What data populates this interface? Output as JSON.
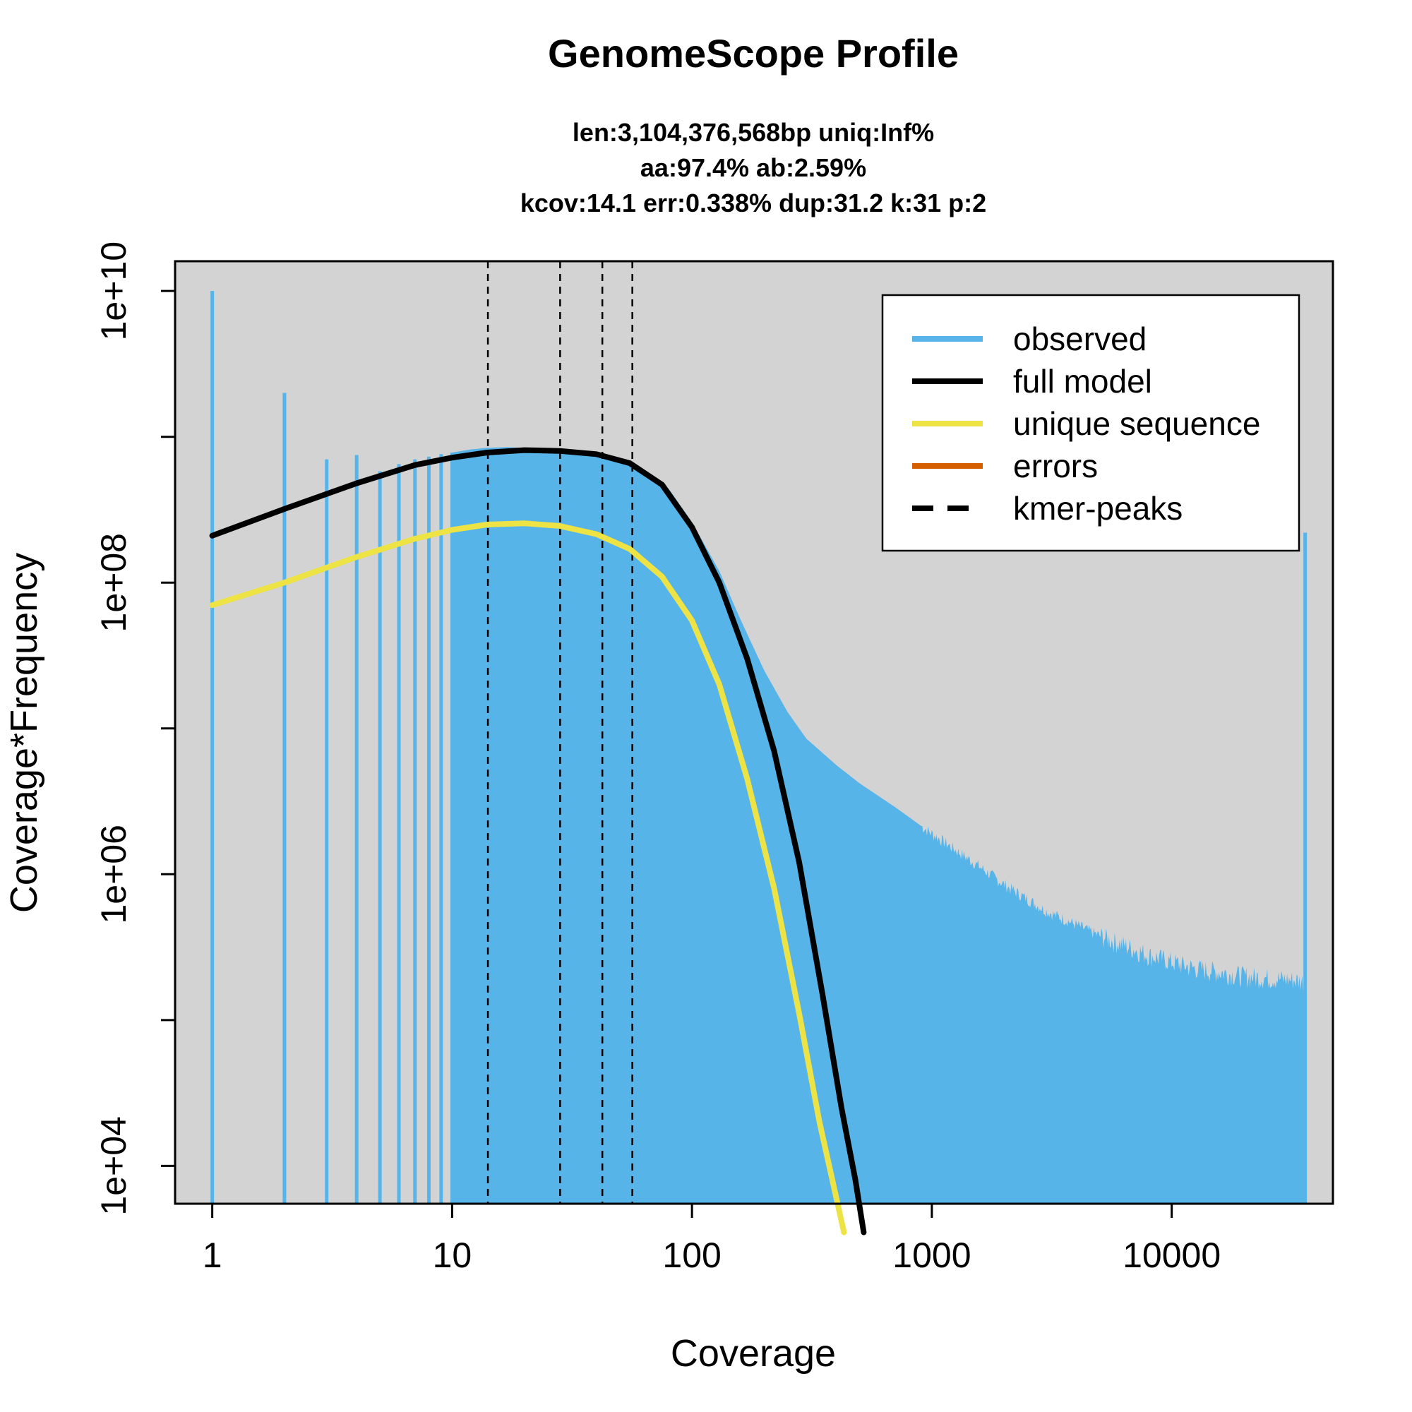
{
  "chart_data": {
    "type": "line",
    "title": "GenomeScope Profile",
    "subtitle_lines": [
      "len:3,104,376,568bp uniq:Inf%",
      "aa:97.4% ab:2.59%",
      "kcov:14.1 err:0.338%  dup:31.2  k:31 p:2"
    ],
    "xlabel": "Coverage",
    "ylabel": "Coverage*Frequency",
    "x_scale": "log",
    "y_scale": "log",
    "xlim": [
      0.7,
      47000
    ],
    "ylim": [
      5500,
      16000000000
    ],
    "x_ticks": [
      1,
      10,
      100,
      1000,
      10000
    ],
    "x_tick_labels": [
      "1",
      "10",
      "100",
      "1000",
      "10000"
    ],
    "y_ticks": [
      10000,
      100000,
      1000000,
      10000000,
      100000000,
      1000000000,
      10000000000
    ],
    "y_tick_labels": [
      "1e+04",
      "",
      "1e+06",
      "",
      "1e+08",
      "",
      "1e+10"
    ],
    "background_color": "#d3d3d3",
    "kmer_peaks": [
      14.1,
      28.2,
      42.3,
      56.4
    ],
    "observed_spikes": [
      {
        "x": 1,
        "y": 10000000000
      },
      {
        "x": 2,
        "y": 2000000000
      },
      {
        "x": 3,
        "y": 700000000
      },
      {
        "x": 4,
        "y": 750000000
      },
      {
        "x": 5,
        "y": 580000000
      },
      {
        "x": 6,
        "y": 650000000
      },
      {
        "x": 7,
        "y": 700000000
      },
      {
        "x": 8,
        "y": 730000000
      },
      {
        "x": 9,
        "y": 760000000
      },
      {
        "x": 10,
        "y": 780000000
      },
      {
        "x": 36000,
        "y": 220000000
      }
    ],
    "observed_envelope": [
      {
        "x": 10,
        "y": 780000000
      },
      {
        "x": 12,
        "y": 820000000
      },
      {
        "x": 14,
        "y": 840000000
      },
      {
        "x": 17,
        "y": 850000000
      },
      {
        "x": 22,
        "y": 830000000
      },
      {
        "x": 30,
        "y": 790000000
      },
      {
        "x": 40,
        "y": 730000000
      },
      {
        "x": 60,
        "y": 620000000
      },
      {
        "x": 80,
        "y": 440000000
      },
      {
        "x": 100,
        "y": 260000000
      },
      {
        "x": 130,
        "y": 120000000
      },
      {
        "x": 160,
        "y": 55000000
      },
      {
        "x": 200,
        "y": 25000000
      },
      {
        "x": 250,
        "y": 13000000
      },
      {
        "x": 300,
        "y": 8500000
      },
      {
        "x": 400,
        "y": 5600000
      },
      {
        "x": 500,
        "y": 4200000
      },
      {
        "x": 700,
        "y": 2900000
      },
      {
        "x": 1000,
        "y": 1900000
      },
      {
        "x": 1500,
        "y": 1200000
      },
      {
        "x": 2000,
        "y": 850000
      },
      {
        "x": 3000,
        "y": 560000
      },
      {
        "x": 5000,
        "y": 380000
      },
      {
        "x": 8000,
        "y": 280000
      },
      {
        "x": 12000,
        "y": 230000
      },
      {
        "x": 20000,
        "y": 200000
      },
      {
        "x": 30000,
        "y": 190000
      },
      {
        "x": 36000,
        "y": 185000
      }
    ],
    "series": [
      {
        "name": "full model",
        "color": "#000000",
        "points": [
          {
            "x": 1,
            "y": 210000000
          },
          {
            "x": 2,
            "y": 320000000
          },
          {
            "x": 4,
            "y": 480000000
          },
          {
            "x": 7,
            "y": 640000000
          },
          {
            "x": 10,
            "y": 720000000
          },
          {
            "x": 14,
            "y": 780000000
          },
          {
            "x": 20,
            "y": 810000000
          },
          {
            "x": 28,
            "y": 800000000
          },
          {
            "x": 40,
            "y": 760000000
          },
          {
            "x": 55,
            "y": 660000000
          },
          {
            "x": 75,
            "y": 470000000
          },
          {
            "x": 100,
            "y": 240000000
          },
          {
            "x": 130,
            "y": 100000000
          },
          {
            "x": 170,
            "y": 30000000
          },
          {
            "x": 220,
            "y": 7000000
          },
          {
            "x": 280,
            "y": 1200000
          },
          {
            "x": 350,
            "y": 150000
          },
          {
            "x": 420,
            "y": 25000
          },
          {
            "x": 480,
            "y": 8000
          },
          {
            "x": 520,
            "y": 3500
          }
        ]
      },
      {
        "name": "unique sequence",
        "color": "#ede345",
        "points": [
          {
            "x": 1,
            "y": 70000000
          },
          {
            "x": 2,
            "y": 100000000
          },
          {
            "x": 4,
            "y": 150000000
          },
          {
            "x": 7,
            "y": 200000000
          },
          {
            "x": 10,
            "y": 230000000
          },
          {
            "x": 14,
            "y": 250000000
          },
          {
            "x": 20,
            "y": 255000000
          },
          {
            "x": 28,
            "y": 245000000
          },
          {
            "x": 40,
            "y": 215000000
          },
          {
            "x": 55,
            "y": 170000000
          },
          {
            "x": 75,
            "y": 110000000
          },
          {
            "x": 100,
            "y": 55000000
          },
          {
            "x": 130,
            "y": 20000000
          },
          {
            "x": 170,
            "y": 4500000
          },
          {
            "x": 220,
            "y": 800000
          },
          {
            "x": 280,
            "y": 110000
          },
          {
            "x": 340,
            "y": 20000
          },
          {
            "x": 400,
            "y": 6000
          },
          {
            "x": 430,
            "y": 3500
          }
        ]
      }
    ],
    "legend": {
      "placement": "top-right",
      "entries": [
        {
          "label": "observed",
          "color": "#56b4e9",
          "style": "solid"
        },
        {
          "label": "full model",
          "color": "#000000",
          "style": "solid"
        },
        {
          "label": "unique sequence",
          "color": "#ede345",
          "style": "solid"
        },
        {
          "label": "errors",
          "color": "#d55e00",
          "style": "solid"
        },
        {
          "label": "kmer-peaks",
          "color": "#000000",
          "style": "dashed"
        }
      ]
    },
    "observed_color": "#56b4e9"
  }
}
